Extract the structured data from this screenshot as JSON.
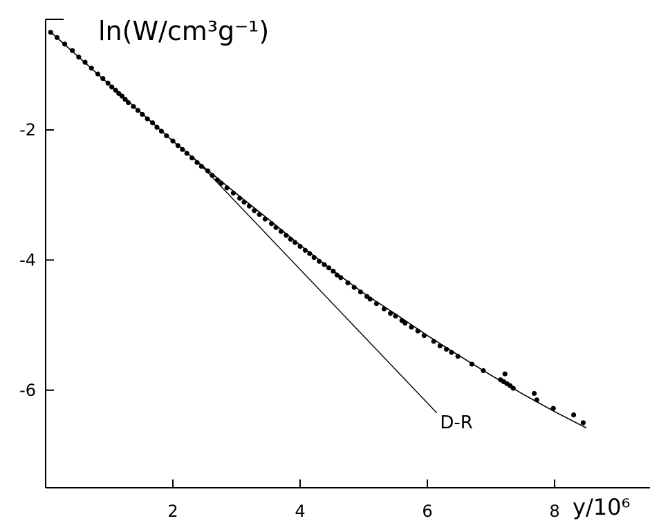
{
  "chart_data": {
    "type": "scatter",
    "title": "",
    "ylabel": "ln(W/cm³g⁻¹)",
    "xlabel": "y/10⁶",
    "xlim": [
      0,
      9.5
    ],
    "ylim": [
      -7.5,
      -0.3
    ],
    "xticks": [
      2,
      4,
      6,
      8
    ],
    "xtick_labels": [
      "2",
      "4",
      "6",
      "8"
    ],
    "yticks": [
      -2,
      -4,
      -6
    ],
    "ytick_labels": [
      "-2",
      "-4",
      "-6"
    ],
    "grid": false,
    "legend": "none",
    "series": [
      {
        "kind": "points",
        "x": [
          0.08,
          0.18,
          0.3,
          0.42,
          0.52,
          0.62,
          0.72,
          0.82,
          0.9,
          0.98,
          1.04,
          1.1,
          1.15,
          1.2,
          1.25,
          1.3,
          1.38,
          1.45,
          1.52,
          1.6,
          1.68,
          1.75,
          1.82,
          1.9,
          2.0,
          2.08,
          2.15,
          2.22,
          2.3,
          2.38,
          2.45,
          2.55,
          2.62,
          2.7,
          2.76,
          2.85,
          2.95,
          3.05,
          3.12,
          3.2,
          3.28,
          3.36,
          3.45,
          3.55,
          3.62,
          3.7,
          3.78,
          3.85,
          3.92,
          4.0,
          4.08,
          4.15,
          4.22,
          4.3,
          4.38,
          4.45,
          4.52,
          4.58,
          4.64,
          4.75,
          4.85,
          4.95,
          5.05,
          5.1,
          5.2,
          5.32,
          5.42,
          5.5,
          5.6,
          5.65,
          5.75,
          5.85,
          5.95,
          6.1,
          6.2,
          6.3,
          6.38,
          6.48,
          6.7,
          6.88,
          7.15,
          7.2,
          7.22,
          7.25,
          7.3,
          7.35,
          7.68,
          7.72,
          7.98,
          8.3,
          8.45
        ],
        "y": [
          -0.5,
          -0.58,
          -0.68,
          -0.78,
          -0.88,
          -0.96,
          -1.05,
          -1.14,
          -1.21,
          -1.28,
          -1.34,
          -1.39,
          -1.44,
          -1.48,
          -1.53,
          -1.58,
          -1.64,
          -1.7,
          -1.76,
          -1.83,
          -1.89,
          -1.96,
          -2.02,
          -2.09,
          -2.17,
          -2.24,
          -2.3,
          -2.36,
          -2.43,
          -2.5,
          -2.56,
          -2.63,
          -2.7,
          -2.77,
          -2.82,
          -2.89,
          -2.97,
          -3.05,
          -3.11,
          -3.17,
          -3.24,
          -3.3,
          -3.37,
          -3.44,
          -3.5,
          -3.56,
          -3.62,
          -3.68,
          -3.73,
          -3.79,
          -3.85,
          -3.9,
          -3.96,
          -4.02,
          -4.07,
          -4.12,
          -4.17,
          -4.23,
          -4.27,
          -4.35,
          -4.42,
          -4.49,
          -4.56,
          -4.6,
          -4.67,
          -4.75,
          -4.82,
          -4.86,
          -4.93,
          -4.97,
          -5.03,
          -5.09,
          -5.16,
          -5.25,
          -5.32,
          -5.37,
          -5.42,
          -5.48,
          -5.6,
          -5.7,
          -5.84,
          -5.87,
          -5.75,
          -5.9,
          -5.93,
          -5.97,
          -6.05,
          -6.15,
          -6.28,
          -6.38,
          -6.5
        ]
      },
      {
        "kind": "fit-curve",
        "x": [
          0.05,
          1,
          2,
          2.5,
          3,
          3.5,
          4,
          4.5,
          5,
          5.5,
          6,
          6.5,
          7,
          7.5,
          8,
          8.5
        ],
        "y": [
          -0.47,
          -1.3,
          -2.17,
          -2.58,
          -2.98,
          -3.37,
          -3.77,
          -4.15,
          -4.51,
          -4.83,
          -5.16,
          -5.47,
          -5.77,
          -6.06,
          -6.33,
          -6.58
        ]
      },
      {
        "kind": "DR-line",
        "x": [
          2.3,
          6.15
        ],
        "y": [
          -2.4,
          -6.35
        ]
      }
    ],
    "annotations": [
      {
        "text": "D-R",
        "x": 6.2,
        "y": -6.5
      }
    ]
  }
}
